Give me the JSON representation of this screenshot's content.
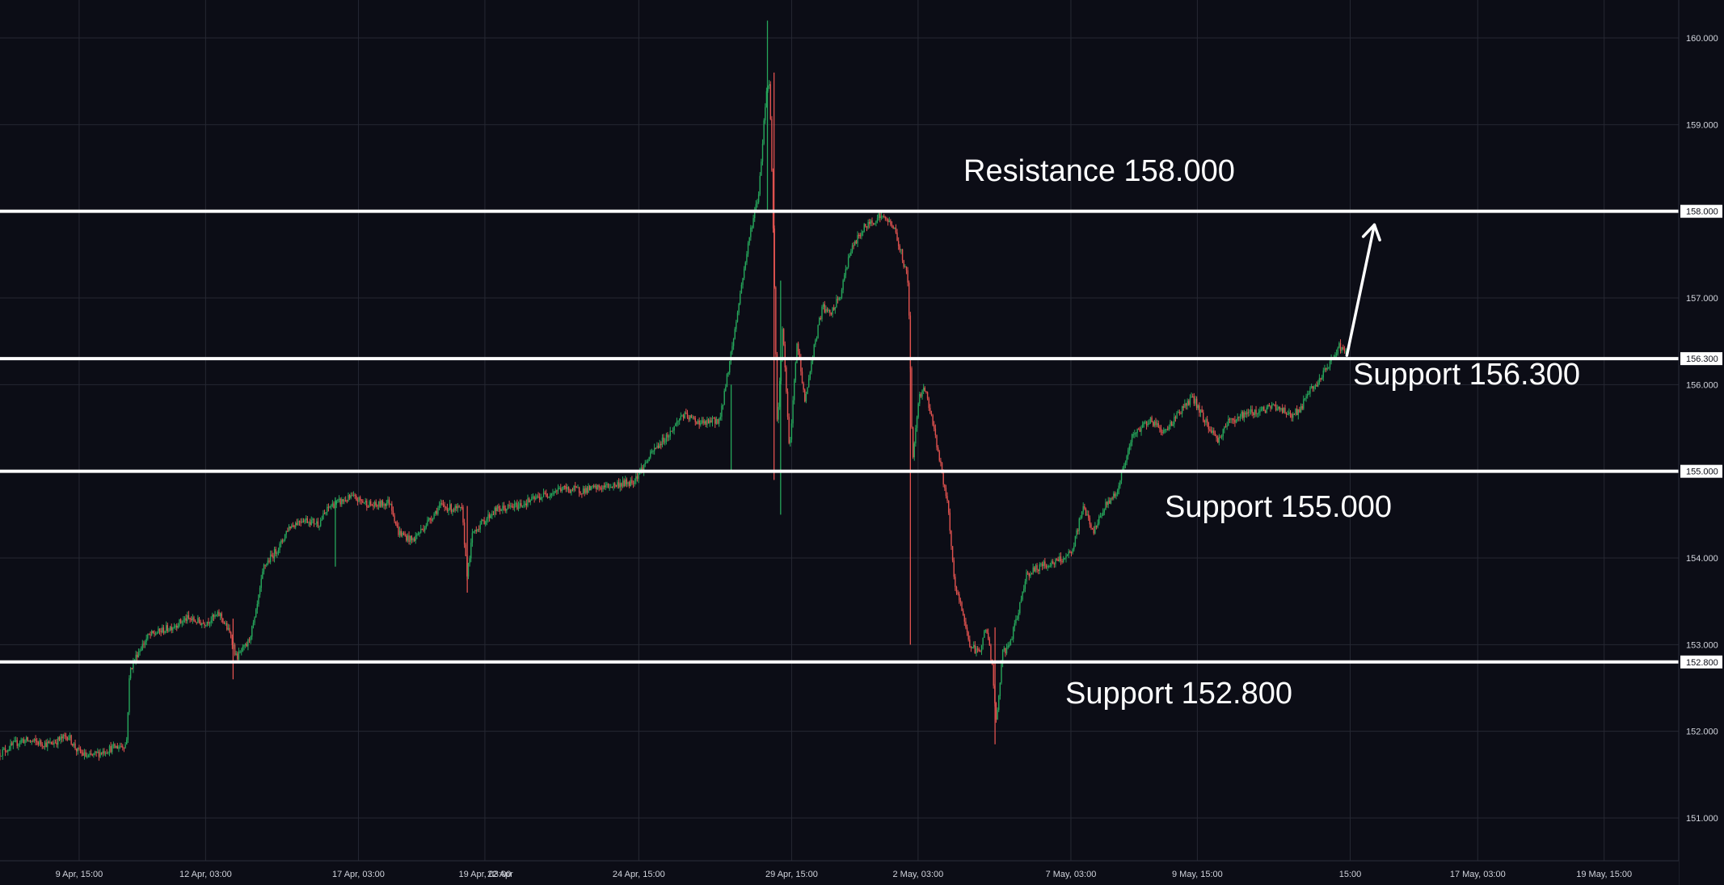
{
  "chart_data": {
    "type": "candlestick",
    "title": "",
    "xlabel": "",
    "ylabel": "",
    "ylim": [
      150.5,
      160.5
    ],
    "grid": true,
    "colors": {
      "background": "#0c0d16",
      "grid": "#262833",
      "up": "#26a65b",
      "down": "#e0524f",
      "level_line": "#ffffff",
      "axis_text": "#d1d4dc",
      "price_tag_bg": "#ffffff",
      "price_tag_text": "#0c0d16"
    },
    "y_ticks": [
      "151.000",
      "152.000",
      "153.000",
      "154.000",
      "155.000",
      "156.000",
      "157.000",
      "158.000",
      "159.000",
      "160.000"
    ],
    "x_ticks": [
      "9 Apr, 15:00",
      "12 Apr, 03:00",
      "17 Apr, 03:00",
      "19 Apr, 03:00",
      "22 Apr",
      "24 Apr, 15:00",
      "29 Apr, 15:00",
      "2 May, 03:00",
      "7 May, 03:00",
      "9 May, 15:00",
      "15:00",
      "17 May, 03:00",
      "19 May, 15:00"
    ],
    "levels": [
      {
        "value": 158.0,
        "price_label": "158.000",
        "annotation": "Resistance 158.000"
      },
      {
        "value": 156.3,
        "price_label": "156.300",
        "annotation": "Support 156.300"
      },
      {
        "value": 155.0,
        "price_label": "155.000",
        "annotation": "Support 155.000"
      },
      {
        "value": 152.8,
        "price_label": "152.800",
        "annotation": "Support 152.800"
      }
    ],
    "series": [
      {
        "price_path": [
          [
            0,
            151.75
          ],
          [
            20,
            151.9
          ],
          [
            45,
            151.85
          ],
          [
            62,
            151.95
          ],
          [
            70,
            151.78
          ],
          [
            80,
            151.7
          ],
          [
            100,
            151.8
          ],
          [
            115,
            151.85
          ],
          [
            118,
            152.7
          ],
          [
            125,
            152.9
          ],
          [
            135,
            153.1
          ],
          [
            155,
            153.2
          ],
          [
            170,
            153.3
          ],
          [
            185,
            153.25
          ],
          [
            200,
            153.35
          ],
          [
            210,
            153.1
          ],
          [
            215,
            152.85
          ],
          [
            225,
            153.0
          ],
          [
            232,
            153.3
          ],
          [
            240,
            153.9
          ],
          [
            255,
            154.15
          ],
          [
            262,
            154.35
          ],
          [
            275,
            154.45
          ],
          [
            290,
            154.4
          ],
          [
            300,
            154.6
          ],
          [
            320,
            154.7
          ],
          [
            340,
            154.6
          ],
          [
            355,
            154.65
          ],
          [
            362,
            154.3
          ],
          [
            375,
            154.2
          ],
          [
            385,
            154.35
          ],
          [
            400,
            154.6
          ],
          [
            420,
            154.55
          ],
          [
            425,
            153.8
          ],
          [
            430,
            154.3
          ],
          [
            450,
            154.55
          ],
          [
            470,
            154.6
          ],
          [
            490,
            154.7
          ],
          [
            510,
            154.8
          ],
          [
            530,
            154.78
          ],
          [
            550,
            154.82
          ],
          [
            575,
            154.88
          ],
          [
            585,
            155.05
          ],
          [
            595,
            155.25
          ],
          [
            610,
            155.45
          ],
          [
            620,
            155.65
          ],
          [
            640,
            155.55
          ],
          [
            655,
            155.6
          ],
          [
            660,
            156.0
          ],
          [
            668,
            156.6
          ],
          [
            675,
            157.2
          ],
          [
            683,
            157.8
          ],
          [
            690,
            158.2
          ],
          [
            697,
            159.4
          ],
          [
            700,
            159.5
          ],
          [
            704,
            157.4
          ],
          [
            707,
            155.5
          ],
          [
            712,
            156.7
          ],
          [
            718,
            155.2
          ],
          [
            725,
            156.5
          ],
          [
            732,
            155.8
          ],
          [
            740,
            156.4
          ],
          [
            748,
            156.9
          ],
          [
            755,
            156.8
          ],
          [
            765,
            157.05
          ],
          [
            772,
            157.5
          ],
          [
            785,
            157.8
          ],
          [
            800,
            157.95
          ],
          [
            812,
            157.85
          ],
          [
            820,
            157.5
          ],
          [
            826,
            157.2
          ],
          [
            830,
            155.1
          ],
          [
            835,
            155.8
          ],
          [
            840,
            156.0
          ],
          [
            848,
            155.6
          ],
          [
            855,
            155.1
          ],
          [
            862,
            154.6
          ],
          [
            868,
            153.7
          ],
          [
            875,
            153.4
          ],
          [
            882,
            153.0
          ],
          [
            890,
            152.9
          ],
          [
            897,
            153.2
          ],
          [
            902,
            152.8
          ],
          [
            906,
            152.1
          ],
          [
            912,
            152.9
          ],
          [
            918,
            153.0
          ],
          [
            925,
            153.3
          ],
          [
            933,
            153.8
          ],
          [
            945,
            153.9
          ],
          [
            960,
            153.95
          ],
          [
            975,
            154.05
          ],
          [
            985,
            154.6
          ],
          [
            995,
            154.3
          ],
          [
            1005,
            154.6
          ],
          [
            1015,
            154.75
          ],
          [
            1022,
            155.05
          ],
          [
            1030,
            155.4
          ],
          [
            1045,
            155.6
          ],
          [
            1060,
            155.45
          ],
          [
            1070,
            155.65
          ],
          [
            1085,
            155.85
          ],
          [
            1095,
            155.6
          ],
          [
            1108,
            155.35
          ],
          [
            1115,
            155.55
          ],
          [
            1130,
            155.65
          ],
          [
            1145,
            155.7
          ],
          [
            1160,
            155.75
          ],
          [
            1175,
            155.65
          ],
          [
            1183,
            155.72
          ],
          [
            1190,
            155.9
          ],
          [
            1200,
            156.05
          ],
          [
            1210,
            156.25
          ],
          [
            1218,
            156.45
          ],
          [
            1225,
            156.35
          ]
        ],
        "wicks": [
          {
            "x": 698,
            "high": 160.2,
            "low": 158.0
          },
          {
            "x": 704,
            "high": 159.6,
            "low": 154.9
          },
          {
            "x": 710,
            "high": 157.2,
            "low": 154.5
          },
          {
            "x": 665,
            "high": 156.0,
            "low": 155.0
          },
          {
            "x": 828,
            "high": 156.2,
            "low": 153.0
          },
          {
            "x": 905,
            "high": 153.2,
            "low": 151.85
          },
          {
            "x": 425,
            "high": 154.6,
            "low": 153.6
          },
          {
            "x": 212,
            "high": 153.3,
            "low": 152.6
          },
          {
            "x": 305,
            "high": 154.7,
            "low": 153.9
          }
        ]
      }
    ],
    "arrow": {
      "from": [
        1225,
        156.3
      ],
      "to": [
        1250,
        157.9
      ]
    }
  }
}
